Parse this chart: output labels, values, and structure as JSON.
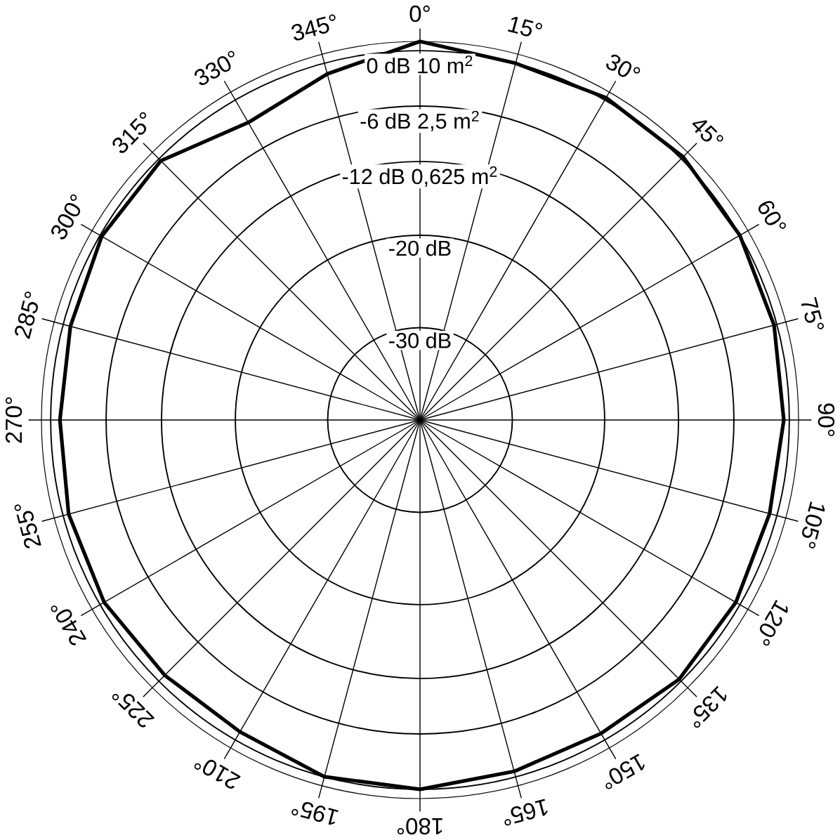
{
  "chart_data": {
    "type": "radar",
    "categories": [
      "0°",
      "15°",
      "30°",
      "45°",
      "60°",
      "75°",
      "90°",
      "105°",
      "120°",
      "135°",
      "150°",
      "165°",
      "180°",
      "195°",
      "210°",
      "225°",
      "240°",
      "255°",
      "270°",
      "285°",
      "300°",
      "315°",
      "330°",
      "345°"
    ],
    "series": [
      {
        "color": "#000000",
        "values": [
          1.0,
          0,
          0.3,
          0.3,
          0,
          -0.3,
          -0.6,
          -0.8,
          -0.5,
          -0.3,
          -0.8,
          -0.6,
          0,
          0,
          -1.0,
          -0.9,
          -0.5,
          -0.6,
          -1.0,
          -0.8,
          -0.2,
          -0.3,
          -2.8,
          -1.2
        ]
      }
    ],
    "ylim": [
      -40,
      1
    ],
    "yticks": [
      {
        "value": 0,
        "label": "0 dB 10 m$^{2}$"
      },
      {
        "value": -6,
        "label": "-6 dB 2,5 m$^{2}$"
      },
      {
        "value": -12,
        "label": "-12 dB 0,625 m$^{2}$"
      },
      {
        "value": -20,
        "label": "-20 dB"
      },
      {
        "value": -30,
        "label": "-30 dB"
      }
    ]
  }
}
